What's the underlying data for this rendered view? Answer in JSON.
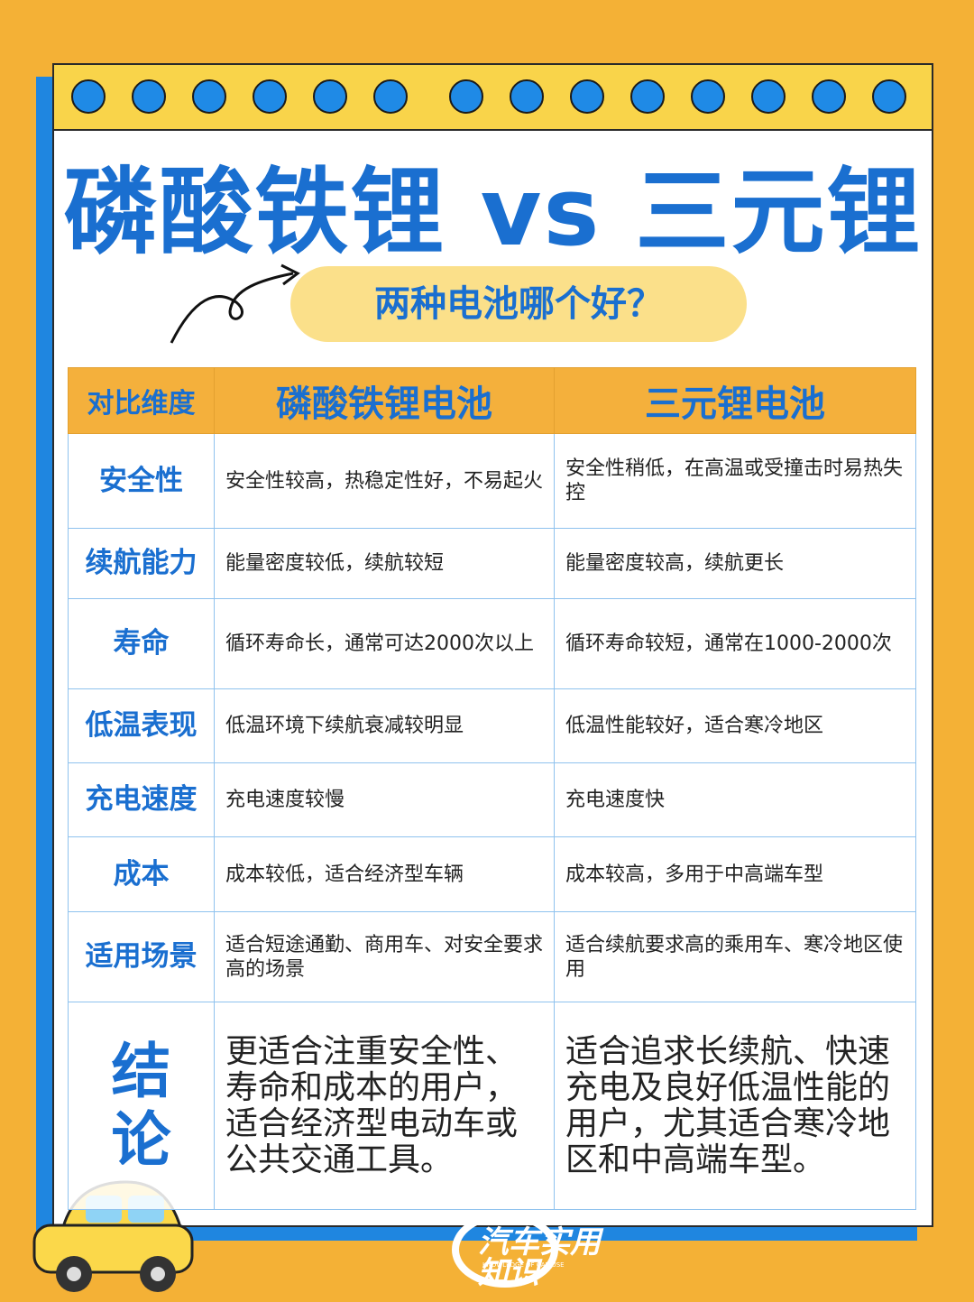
{
  "header": {
    "title": "磷酸铁锂 vs 三元锂",
    "subtitle": "两种电池哪个好？"
  },
  "table": {
    "columns": [
      "对比维度",
      "磷酸铁锂电池",
      "三元锂电池"
    ],
    "rows": [
      [
        "安全性",
        "安全性较高，热稳定性好，不易起火",
        "安全性稍低，在高温或受撞击时易热失控"
      ],
      [
        "续航能力",
        "能量密度较低，续航较短",
        "能量密度较高，续航更长"
      ],
      [
        "寿命",
        "循环寿命长，通常可达2000次以上",
        "循环寿命较短，通常在1000-2000次"
      ],
      [
        "低温表现",
        "低温环境下续航衰减较明显",
        "低温性能较好，适合寒冷地区"
      ],
      [
        "充电速度",
        "充电速度较慢",
        "充电速度快"
      ],
      [
        "成本",
        "成本较低，适合经济型车辆",
        "成本较高，多用于中高端车型"
      ],
      [
        "适用场景",
        "适合短途通勤、商用车、对安全要求高的场景",
        "适合续航要求高的乘用车、寒冷地区使用"
      ],
      [
        "结论",
        "更适合注重安全性、寿命和成本的用户，适合经济型电动车或公共交通工具。",
        "适合追求长续航、快速充电及良好低温性能的用户，尤其适合寒冷地区和中高端车型。"
      ]
    ]
  },
  "logo": {
    "name": "汽车实用知识",
    "tagline": "KNOWLEDGE OF CAR USE"
  }
}
